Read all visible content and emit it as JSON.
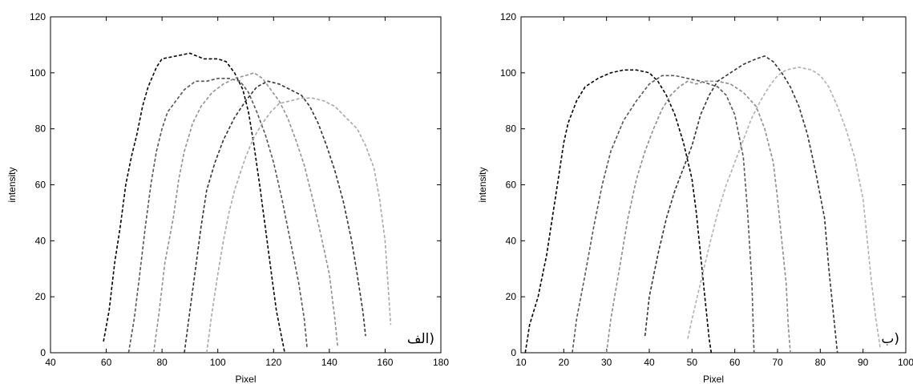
{
  "chart_data": [
    {
      "type": "line",
      "corner_label": "الف)",
      "xlabel": "Pixel",
      "ylabel": "intensity",
      "xlim": [
        40,
        180
      ],
      "ylim": [
        0,
        120
      ],
      "xticks": [
        "40",
        "60",
        "80",
        "100",
        "120",
        "140",
        "160",
        "180"
      ],
      "yticks": [
        "0",
        "20",
        "40",
        "60",
        "80",
        "100",
        "120"
      ],
      "grid": false,
      "series": [
        {
          "color": "#000000",
          "points": [
            [
              59,
              4
            ],
            [
              61,
              15
            ],
            [
              63,
              32
            ],
            [
              65,
              45
            ],
            [
              67,
              60
            ],
            [
              69,
              70
            ],
            [
              71,
              78
            ],
            [
              73,
              88
            ],
            [
              75,
              95
            ],
            [
              78,
              102
            ],
            [
              80,
              105
            ],
            [
              85,
              106
            ],
            [
              90,
              107
            ],
            [
              95,
              105
            ],
            [
              100,
              105
            ],
            [
              103,
              104
            ],
            [
              106,
              100
            ],
            [
              109,
              94
            ],
            [
              111,
              86
            ],
            [
              113,
              74
            ],
            [
              115,
              60
            ],
            [
              117,
              45
            ],
            [
              119,
              30
            ],
            [
              121,
              15
            ],
            [
              123,
              5
            ],
            [
              124,
              0
            ]
          ]
        },
        {
          "color": "#555555",
          "points": [
            [
              68,
              0
            ],
            [
              70,
              12
            ],
            [
              72,
              28
            ],
            [
              74,
              45
            ],
            [
              76,
              60
            ],
            [
              78,
              72
            ],
            [
              80,
              80
            ],
            [
              82,
              86
            ],
            [
              85,
              90
            ],
            [
              88,
              94
            ],
            [
              92,
              97
            ],
            [
              96,
              97
            ],
            [
              100,
              98
            ],
            [
              104,
              98
            ],
            [
              108,
              97
            ],
            [
              111,
              93
            ],
            [
              114,
              86
            ],
            [
              117,
              78
            ],
            [
              120,
              68
            ],
            [
              123,
              55
            ],
            [
              126,
              40
            ],
            [
              129,
              25
            ],
            [
              131,
              12
            ],
            [
              132,
              2
            ]
          ]
        },
        {
          "color": "#909090",
          "points": [
            [
              77,
              0
            ],
            [
              79,
              15
            ],
            [
              81,
              32
            ],
            [
              84,
              48
            ],
            [
              86,
              62
            ],
            [
              88,
              72
            ],
            [
              91,
              82
            ],
            [
              94,
              88
            ],
            [
              98,
              93
            ],
            [
              102,
              96
            ],
            [
              106,
              98
            ],
            [
              110,
              99
            ],
            [
              113,
              100
            ],
            [
              116,
              98
            ],
            [
              119,
              94
            ],
            [
              122,
              90
            ],
            [
              125,
              84
            ],
            [
              128,
              76
            ],
            [
              131,
              67
            ],
            [
              134,
              55
            ],
            [
              137,
              42
            ],
            [
              140,
              28
            ],
            [
              142,
              12
            ],
            [
              143,
              2
            ]
          ]
        },
        {
          "color": "#333333",
          "points": [
            [
              88,
              0
            ],
            [
              90,
              15
            ],
            [
              92,
              30
            ],
            [
              94,
              45
            ],
            [
              96,
              58
            ],
            [
              99,
              68
            ],
            [
              102,
              76
            ],
            [
              106,
              84
            ],
            [
              110,
              90
            ],
            [
              114,
              95
            ],
            [
              118,
              97
            ],
            [
              122,
              96
            ],
            [
              126,
              94
            ],
            [
              130,
              92
            ],
            [
              133,
              88
            ],
            [
              136,
              82
            ],
            [
              139,
              74
            ],
            [
              142,
              65
            ],
            [
              145,
              54
            ],
            [
              148,
              40
            ],
            [
              150,
              28
            ],
            [
              152,
              15
            ],
            [
              153,
              6
            ]
          ]
        },
        {
          "color": "#a8a8a8",
          "points": [
            [
              96,
              0
            ],
            [
              98,
              15
            ],
            [
              100,
              28
            ],
            [
              102,
              40
            ],
            [
              104,
              50
            ],
            [
              106,
              58
            ],
            [
              108,
              64
            ],
            [
              110,
              70
            ],
            [
              113,
              77
            ],
            [
              116,
              82
            ],
            [
              119,
              86
            ],
            [
              122,
              89
            ],
            [
              126,
              90
            ],
            [
              130,
              91
            ],
            [
              134,
              91
            ],
            [
              138,
              90
            ],
            [
              142,
              88
            ],
            [
              146,
              84
            ],
            [
              150,
              80
            ],
            [
              153,
              74
            ],
            [
              156,
              66
            ],
            [
              158,
              55
            ],
            [
              160,
              40
            ],
            [
              161,
              25
            ],
            [
              162,
              10
            ]
          ]
        }
      ]
    },
    {
      "type": "line",
      "corner_label": "ب)",
      "xlabel": "Pixel",
      "ylabel": "intensity",
      "xlim": [
        10,
        100
      ],
      "ylim": [
        0,
        120
      ],
      "xticks": [
        "10",
        "20",
        "30",
        "40",
        "50",
        "60",
        "70",
        "80",
        "90",
        "100"
      ],
      "yticks": [
        "0",
        "20",
        "40",
        "60",
        "80",
        "100",
        "120"
      ],
      "grid": false,
      "series": [
        {
          "color": "#000000",
          "points": [
            [
              11,
              0
            ],
            [
              12,
              10
            ],
            [
              14,
              20
            ],
            [
              16,
              35
            ],
            [
              17,
              45
            ],
            [
              18,
              55
            ],
            [
              19,
              65
            ],
            [
              20,
              75
            ],
            [
              21,
              82
            ],
            [
              23,
              90
            ],
            [
              25,
              95
            ],
            [
              28,
              98
            ],
            [
              31,
              100
            ],
            [
              34,
              101
            ],
            [
              37,
              101
            ],
            [
              40,
              100
            ],
            [
              42,
              97
            ],
            [
              44,
              92
            ],
            [
              46,
              85
            ],
            [
              48,
              75
            ],
            [
              50,
              62
            ],
            [
              51,
              50
            ],
            [
              52,
              35
            ],
            [
              53,
              20
            ],
            [
              54,
              5
            ],
            [
              54.5,
              0
            ]
          ]
        },
        {
          "color": "#555555",
          "points": [
            [
              22,
              0
            ],
            [
              23,
              12
            ],
            [
              25,
              28
            ],
            [
              27,
              45
            ],
            [
              29,
              60
            ],
            [
              31,
              72
            ],
            [
              34,
              83
            ],
            [
              37,
              90
            ],
            [
              40,
              96
            ],
            [
              43,
              99
            ],
            [
              46,
              99
            ],
            [
              49,
              98
            ],
            [
              52,
              97
            ],
            [
              54,
              96
            ],
            [
              56,
              95
            ],
            [
              58,
              92
            ],
            [
              60,
              85
            ],
            [
              62,
              70
            ],
            [
              63,
              50
            ],
            [
              64,
              25
            ],
            [
              64.5,
              0
            ]
          ]
        },
        {
          "color": "#8c8c8c",
          "points": [
            [
              30,
              0
            ],
            [
              31,
              12
            ],
            [
              33,
              30
            ],
            [
              35,
              48
            ],
            [
              37,
              62
            ],
            [
              39,
              72
            ],
            [
              41,
              80
            ],
            [
              43,
              87
            ],
            [
              45,
              92
            ],
            [
              47,
              95
            ],
            [
              49,
              97
            ],
            [
              51,
              96
            ],
            [
              53,
              97
            ],
            [
              56,
              97
            ],
            [
              59,
              96
            ],
            [
              62,
              93
            ],
            [
              65,
              88
            ],
            [
              67,
              80
            ],
            [
              69,
              68
            ],
            [
              70,
              55
            ],
            [
              71,
              40
            ],
            [
              72,
              25
            ],
            [
              72.5,
              10
            ],
            [
              73,
              0
            ]
          ]
        },
        {
          "color": "#333333",
          "points": [
            [
              39,
              6
            ],
            [
              40,
              20
            ],
            [
              42,
              35
            ],
            [
              44,
              48
            ],
            [
              46,
              58
            ],
            [
              48,
              66
            ],
            [
              50,
              74
            ],
            [
              52,
              85
            ],
            [
              54,
              92
            ],
            [
              56,
              97
            ],
            [
              59,
              100
            ],
            [
              62,
              103
            ],
            [
              65,
              105
            ],
            [
              67,
              106
            ],
            [
              69,
              104
            ],
            [
              71,
              100
            ],
            [
              73,
              95
            ],
            [
              75,
              88
            ],
            [
              77,
              78
            ],
            [
              79,
              64
            ],
            [
              81,
              48
            ],
            [
              82,
              30
            ],
            [
              83,
              15
            ],
            [
              84,
              0
            ]
          ]
        },
        {
          "color": "#b0b0b0",
          "points": [
            [
              49,
              5
            ],
            [
              50,
              12
            ],
            [
              52,
              25
            ],
            [
              54,
              38
            ],
            [
              56,
              50
            ],
            [
              58,
              60
            ],
            [
              60,
              68
            ],
            [
              62,
              76
            ],
            [
              64,
              84
            ],
            [
              66,
              90
            ],
            [
              68,
              95
            ],
            [
              70,
              99
            ],
            [
              72,
              101
            ],
            [
              75,
              102
            ],
            [
              78,
              101
            ],
            [
              80,
              99
            ],
            [
              82,
              95
            ],
            [
              84,
              88
            ],
            [
              86,
              80
            ],
            [
              88,
              70
            ],
            [
              90,
              55
            ],
            [
              91,
              40
            ],
            [
              92,
              25
            ],
            [
              93,
              12
            ],
            [
              94,
              2
            ]
          ]
        }
      ]
    }
  ]
}
